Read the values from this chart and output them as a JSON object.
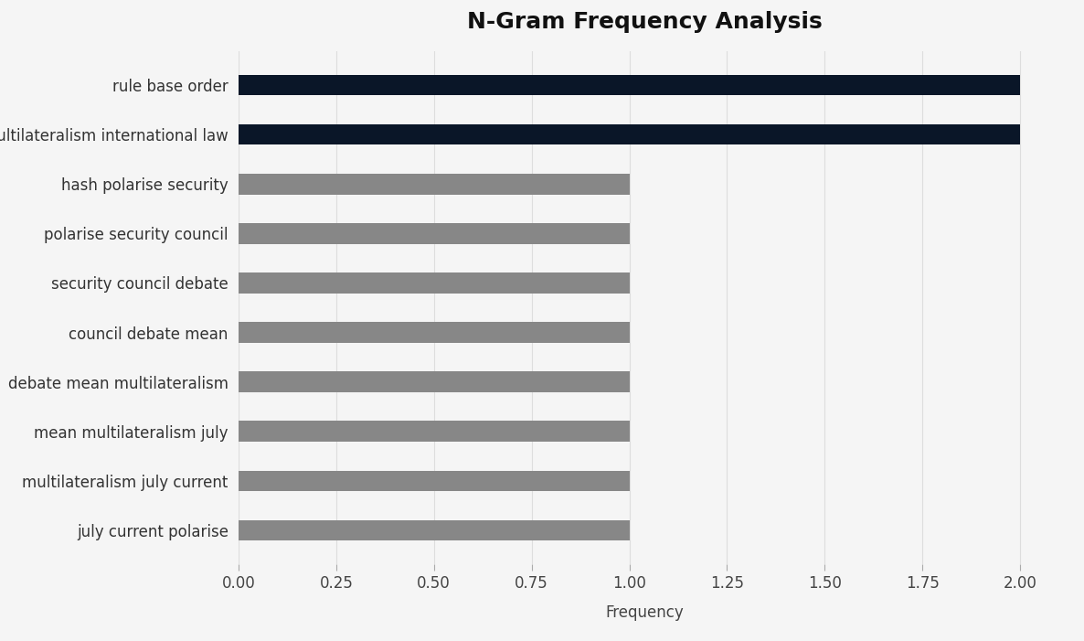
{
  "title": "N-Gram Frequency Analysis",
  "xlabel": "Frequency",
  "categories": [
    "july current polarise",
    "multilateralism july current",
    "mean multilateralism july",
    "debate mean multilateralism",
    "council debate mean",
    "security council debate",
    "polarise security council",
    "hash polarise security",
    "multilateralism international law",
    "rule base order"
  ],
  "values": [
    1,
    1,
    1,
    1,
    1,
    1,
    1,
    1,
    2,
    2
  ],
  "bar_colors": [
    "#878787",
    "#878787",
    "#878787",
    "#878787",
    "#878787",
    "#878787",
    "#878787",
    "#878787",
    "#0a1628",
    "#0a1628"
  ],
  "background_color": "#f5f5f5",
  "plot_background": "#f5f5f5",
  "title_fontsize": 18,
  "label_fontsize": 12,
  "tick_fontsize": 12,
  "bar_height": 0.42,
  "xlim": [
    0,
    2.08
  ],
  "xticks": [
    0.0,
    0.25,
    0.5,
    0.75,
    1.0,
    1.25,
    1.5,
    1.75,
    2.0
  ]
}
